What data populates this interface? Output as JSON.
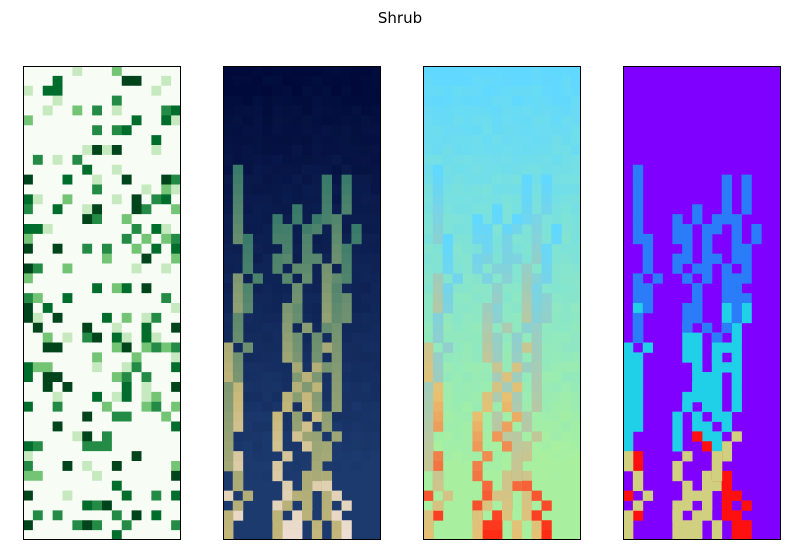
{
  "figure": {
    "title": "Shrub"
  },
  "grid": {
    "cols": 16,
    "rows": 48
  },
  "panels": [
    {
      "id": "panel-1",
      "kind": "random-cover",
      "colormap": "Greens",
      "seed": 11
    },
    {
      "id": "panel-2",
      "kind": "flow-field",
      "colormap": "gist_earth",
      "seed": 23
    },
    {
      "id": "panel-3",
      "kind": "flow-field",
      "colormap": "rainbow-light",
      "seed": 23
    },
    {
      "id": "panel-4",
      "kind": "flow-paths",
      "colormap": "rainbow",
      "seed": 23
    }
  ],
  "colors": {
    "greens": [
      "#f7fcf5",
      "#c7e9c0",
      "#74c476",
      "#238b45",
      "#006d2c",
      "#00441b"
    ],
    "earth_bg_top": "#000a3a",
    "earth_bg_bottom": "#1c3a6e",
    "earth_path_mid": "#3a7a6a",
    "earth_path_high": "#c8b87a",
    "earth_path_max": "#f0e0d8",
    "rainbow_light_bg": "#a8f0a0",
    "rainbow_light_top": "#60d8ff",
    "rainbow_light_path_mid": "#e8c070",
    "rainbow_light_path_max": "#ff2010",
    "rainbow_bg": "#8000ff",
    "rainbow_path_low": "#2a7cf8",
    "rainbow_path_mid": "#20d0e8",
    "rainbow_path_high": "#d0d080",
    "rainbow_path_max": "#ff1010"
  }
}
